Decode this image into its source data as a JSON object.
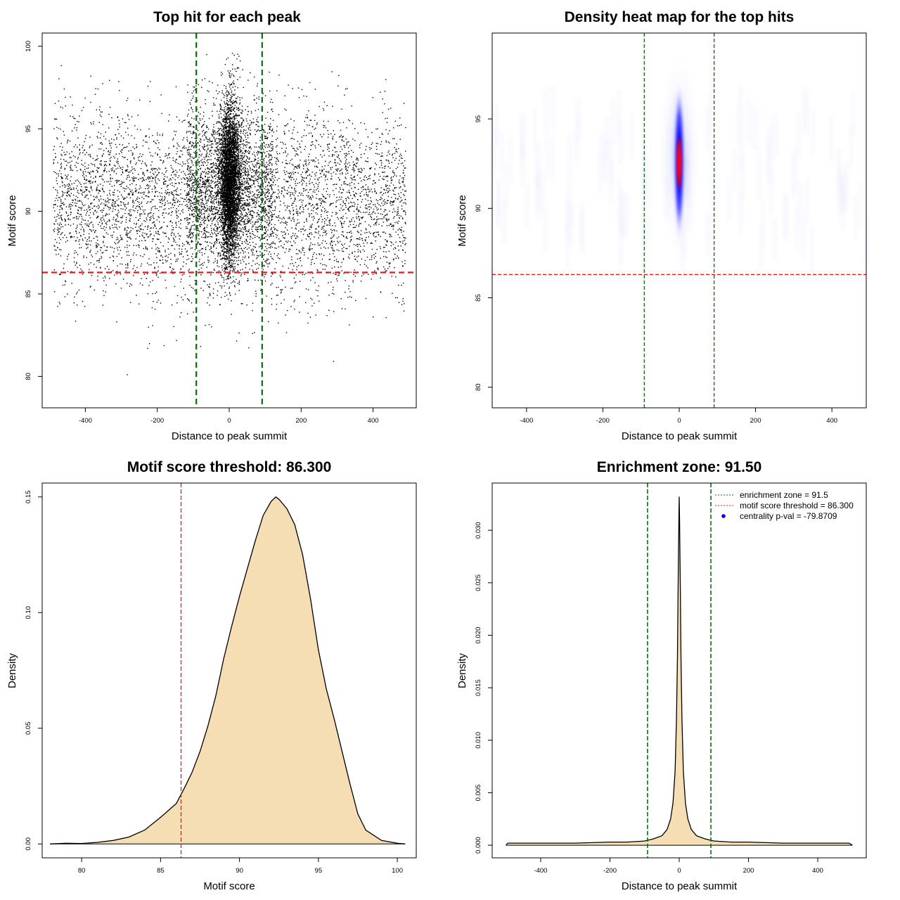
{
  "chart_data": [
    {
      "type": "scatter",
      "title": "Top hit for each peak",
      "xlabel": "Distance to peak summit",
      "ylabel": "Motif score",
      "xlim": [
        -520,
        520
      ],
      "ylim": [
        78.1,
        100.8
      ],
      "xticks": [
        "-400",
        "-200",
        "0",
        "200",
        "400"
      ],
      "xtick_values": [
        -400,
        -200,
        0,
        200,
        400
      ],
      "yticks": [
        "80",
        "85",
        "90",
        "95",
        "100"
      ],
      "ytick_values": [
        80,
        85,
        90,
        95,
        100
      ],
      "hlines": [
        {
          "y": 86.3,
          "color": "#dd1c1c",
          "style": "dashed"
        }
      ],
      "vlines": [
        {
          "x": -91.5,
          "color": "#0a6e0a",
          "style": "dashed"
        },
        {
          "x": 91.5,
          "color": "#0a6e0a",
          "style": "dashed"
        }
      ],
      "point_color": "#000000",
      "points": {
        "background": {
          "x_range": [
            -490,
            490
          ],
          "y_center": 90.6,
          "y_sd": 2.7
        },
        "central": {
          "x_center": 0,
          "x_sd": 14,
          "x_tail": 120,
          "y_center": 91.8,
          "y_sd": 2.3,
          "y_max": 99.6
        }
      },
      "grid": false
    },
    {
      "type": "heatmap",
      "title": "Density heat map for the top hits",
      "xlabel": "Distance to peak summit",
      "ylabel": "Motif score",
      "xlim": [
        -490,
        490
      ],
      "ylim": [
        78.85,
        99.8
      ],
      "xticks": [
        "-400",
        "-200",
        "0",
        "200",
        "400"
      ],
      "xtick_values": [
        -400,
        -200,
        0,
        200,
        400
      ],
      "yticks": [
        "80",
        "85",
        "90",
        "95"
      ],
      "ytick_values": [
        80,
        85,
        90,
        95
      ],
      "hlines": [
        {
          "y": 86.3,
          "color": "#dd1c1c",
          "style": "dashed"
        }
      ],
      "vlines": [
        {
          "x": -91.5,
          "color": "#0a6e0a",
          "style": "dashed"
        },
        {
          "x": 91.5,
          "color": "#0a6e0a",
          "style": "dashed"
        }
      ],
      "hotspot": {
        "x": 0,
        "y": 92.6,
        "colors": [
          "#ffffff",
          "#0000ff",
          "#ff0000"
        ]
      },
      "grid": false
    },
    {
      "type": "area",
      "title": "Motif score threshold: 86.300",
      "xlabel": "Motif score",
      "ylabel": "Density",
      "xlim": [
        77.5,
        101.2
      ],
      "ylim": [
        -0.006,
        0.156
      ],
      "xticks": [
        "80",
        "85",
        "90",
        "95",
        "100"
      ],
      "xtick_values": [
        80,
        85,
        90,
        95,
        100
      ],
      "yticks": [
        "0.00",
        "0.05",
        "0.10",
        "0.15"
      ],
      "ytick_values": [
        0.0,
        0.05,
        0.1,
        0.15
      ],
      "fill_color": "#f5deb3",
      "vlines": [
        {
          "x": 86.3,
          "color": "#dd1c1c",
          "style": "dashed"
        }
      ],
      "x": [
        78.0,
        79.0,
        80.0,
        81.0,
        82.0,
        83.0,
        84.0,
        85.0,
        86.0,
        86.5,
        87.0,
        87.5,
        88.0,
        88.5,
        89.0,
        89.5,
        90.0,
        90.5,
        91.0,
        91.5,
        92.0,
        92.3,
        92.5,
        93.0,
        93.5,
        94.0,
        94.5,
        95.0,
        95.5,
        96.0,
        96.5,
        97.0,
        97.5,
        98.0,
        99.0,
        100.0,
        100.5
      ],
      "y": [
        0.0,
        0.0003,
        0.0002,
        0.0007,
        0.0015,
        0.003,
        0.006,
        0.0115,
        0.0175,
        0.024,
        0.031,
        0.04,
        0.051,
        0.064,
        0.08,
        0.094,
        0.107,
        0.119,
        0.131,
        0.142,
        0.148,
        0.15,
        0.149,
        0.145,
        0.138,
        0.125,
        0.106,
        0.084,
        0.067,
        0.054,
        0.04,
        0.026,
        0.013,
        0.006,
        0.0015,
        0.0003,
        0.0
      ],
      "grid": false
    },
    {
      "type": "area",
      "title": "Enrichment zone: 91.50",
      "xlabel": "Distance to peak summit",
      "ylabel": "Density",
      "xlim": [
        -540,
        540
      ],
      "ylim": [
        -0.0012,
        0.0345
      ],
      "xticks": [
        "-400",
        "-200",
        "0",
        "200",
        "400"
      ],
      "xtick_values": [
        -400,
        -200,
        0,
        200,
        400
      ],
      "yticks": [
        "0.000",
        "0.005",
        "0.010",
        "0.015",
        "0.020",
        "0.025",
        "0.030"
      ],
      "ytick_values": [
        0.0,
        0.005,
        0.01,
        0.015,
        0.02,
        0.025,
        0.03
      ],
      "fill_color": "#f5deb3",
      "vlines": [
        {
          "x": -91.5,
          "color": "#0a6e0a",
          "style": "dashed"
        },
        {
          "x": 91.5,
          "color": "#0a6e0a",
          "style": "dashed"
        }
      ],
      "x": [
        -500,
        -495,
        -400,
        -300,
        -200,
        -150,
        -100,
        -75,
        -50,
        -35,
        -25,
        -18,
        -12,
        -8,
        -5,
        -3,
        -1,
        0,
        1,
        3,
        5,
        8,
        12,
        18,
        25,
        35,
        50,
        75,
        100,
        150,
        200,
        300,
        400,
        490,
        500
      ],
      "y": [
        0.0,
        0.0002,
        0.0002,
        0.0002,
        0.0003,
        0.0003,
        0.0004,
        0.0006,
        0.0009,
        0.0015,
        0.0025,
        0.004,
        0.007,
        0.012,
        0.018,
        0.025,
        0.031,
        0.0332,
        0.031,
        0.025,
        0.018,
        0.012,
        0.007,
        0.004,
        0.0025,
        0.0015,
        0.0009,
        0.0006,
        0.0004,
        0.0003,
        0.0003,
        0.0002,
        0.0002,
        0.0002,
        0.0
      ],
      "legend": {
        "position": "top-right",
        "entries": [
          {
            "label": "enrichment zone = 91.5",
            "color": "#0a6e0a",
            "style": "dotted"
          },
          {
            "label": "motif score threshold = 86.300",
            "color": "#dd1c1c",
            "style": "dotted"
          },
          {
            "label": "centrality p-val = -79.8709",
            "color": "#0000ff",
            "style": "point"
          }
        ]
      },
      "grid": false
    }
  ]
}
